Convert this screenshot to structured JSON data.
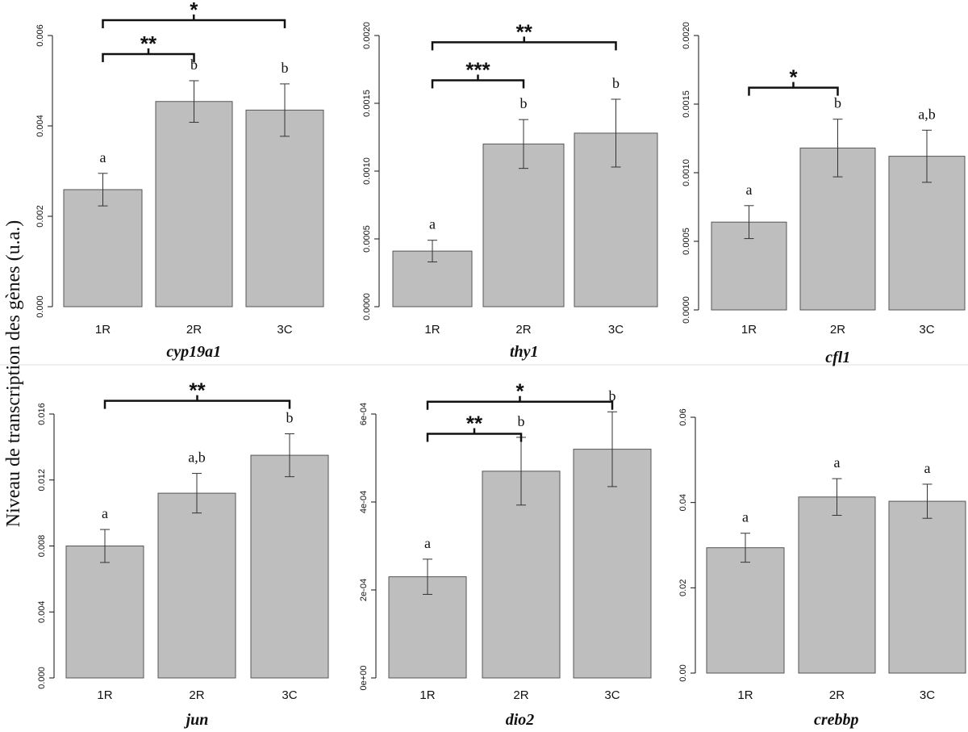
{
  "ylabel": "Niveau de transcription des gènes (u.a.)",
  "chart_data": [
    {
      "type": "bar",
      "title": "cyp19a1",
      "categories": [
        "1R",
        "2R",
        "3C"
      ],
      "values": [
        0.00259,
        0.00454,
        0.00435
      ],
      "errors": [
        0.00036,
        0.00046,
        0.00058
      ],
      "letters": [
        "a",
        "b",
        "b"
      ],
      "ylim": [
        0,
        0.006
      ],
      "yticks": [
        0,
        0.002,
        0.004,
        0.006
      ],
      "ytick_labels": [
        "0.000",
        "0.002",
        "0.004",
        "0.006"
      ],
      "brackets": [
        {
          "from": 0,
          "to": 2,
          "label": "*",
          "y": 0.00634
        },
        {
          "from": 0,
          "to": 1,
          "label": "**",
          "y": 0.00559
        }
      ]
    },
    {
      "type": "bar",
      "title": "thy1",
      "categories": [
        "1R",
        "2R",
        "3C"
      ],
      "values": [
        0.00041,
        0.0012,
        0.00128
      ],
      "errors": [
        8e-05,
        0.00018,
        0.00025
      ],
      "letters": [
        "a",
        "b",
        "b"
      ],
      "ylim": [
        0,
        0.002
      ],
      "yticks": [
        0,
        0.0005,
        0.001,
        0.0015,
        0.002
      ],
      "ytick_labels": [
        "0.0000",
        "0.0005",
        "0.0010",
        "0.0015",
        "0.0020"
      ],
      "brackets": [
        {
          "from": 0,
          "to": 2,
          "label": "**",
          "y": 0.00195
        },
        {
          "from": 0,
          "to": 1,
          "label": "***",
          "y": 0.00167
        }
      ]
    },
    {
      "type": "bar",
      "title": "cfl1",
      "categories": [
        "1R",
        "2R",
        "3C"
      ],
      "values": [
        0.00064,
        0.00118,
        0.00112
      ],
      "errors": [
        0.00012,
        0.00021,
        0.00019
      ],
      "letters": [
        "a",
        "b",
        "a,b"
      ],
      "ylim": [
        0,
        0.002
      ],
      "yticks": [
        0,
        0.0005,
        0.001,
        0.0015,
        0.002
      ],
      "ytick_labels": [
        "0.0000",
        "0.0005",
        "0.0010",
        "0.0015",
        "0.0020"
      ],
      "brackets": [
        {
          "from": 0,
          "to": 1,
          "label": "*",
          "y": 0.00162
        }
      ]
    },
    {
      "type": "bar",
      "title": "jun",
      "categories": [
        "1R",
        "2R",
        "3C"
      ],
      "values": [
        0.008,
        0.0112,
        0.0135
      ],
      "errors": [
        0.001,
        0.0012,
        0.0013
      ],
      "letters": [
        "a",
        "a,b",
        "b"
      ],
      "ylim": [
        0,
        0.016
      ],
      "yticks": [
        0,
        0.004,
        0.008,
        0.012,
        0.016
      ],
      "ytick_labels": [
        "0.000",
        "0.004",
        "0.008",
        "0.012",
        "0.016"
      ],
      "brackets": [
        {
          "from": 0,
          "to": 2,
          "label": "**",
          "y": 0.0168
        }
      ]
    },
    {
      "type": "bar",
      "title": "dio2",
      "categories": [
        "1R",
        "2R",
        "3C"
      ],
      "values": [
        0.00023,
        0.00047,
        0.00052
      ],
      "errors": [
        4e-05,
        7.7e-05,
        8.5e-05
      ],
      "letters": [
        "a",
        "b",
        "b"
      ],
      "ylim": [
        0,
        0.0006
      ],
      "yticks": [
        0,
        0.0002,
        0.0004,
        0.0006
      ],
      "ytick_labels": [
        "0e+00",
        "2e-04",
        "4e-04",
        "6e-04"
      ],
      "brackets": [
        {
          "from": 0,
          "to": 2,
          "label": "*",
          "y": 0.000628
        },
        {
          "from": 0,
          "to": 1,
          "label": "**",
          "y": 0.000555
        }
      ]
    },
    {
      "type": "bar",
      "title": "crebbp",
      "categories": [
        "1R",
        "2R",
        "3C"
      ],
      "values": [
        0.0294,
        0.0413,
        0.0403
      ],
      "errors": [
        0.0034,
        0.0043,
        0.004
      ],
      "letters": [
        "a",
        "a",
        "a"
      ],
      "ylim": [
        0,
        0.06
      ],
      "yticks": [
        0,
        0.02,
        0.04,
        0.06
      ],
      "ytick_labels": [
        "0.00",
        "0.02",
        "0.04",
        "0.06"
      ],
      "brackets": []
    }
  ]
}
